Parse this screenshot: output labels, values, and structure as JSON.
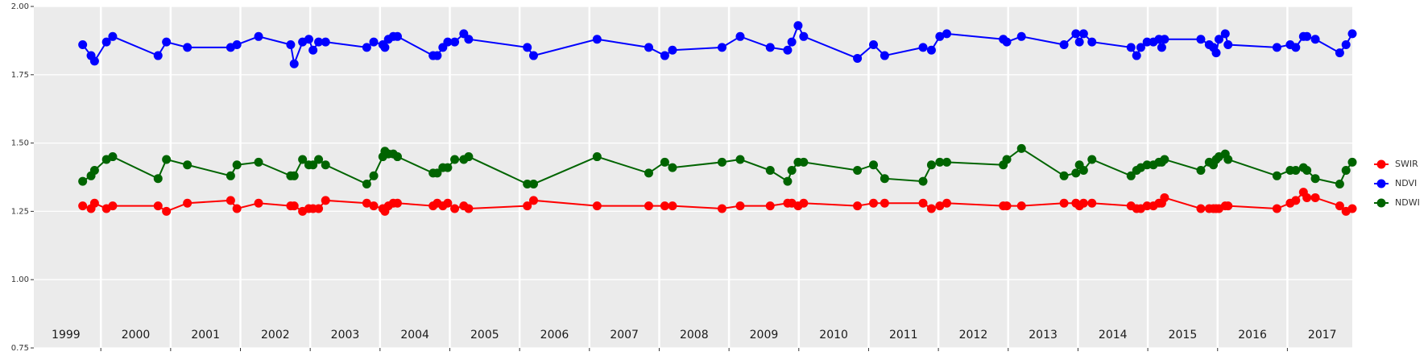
{
  "chart_data": {
    "type": "line",
    "x": [
      1999.74,
      1999.86,
      1999.91,
      2000.08,
      2000.17,
      2000.82,
      2000.94,
      2001.24,
      2001.86,
      2001.95,
      2002.26,
      2002.72,
      2002.77,
      2002.89,
      2002.98,
      2003.04,
      2003.12,
      2003.22,
      2003.81,
      2003.91,
      2004.04,
      2004.07,
      2004.12,
      2004.19,
      2004.25,
      2004.76,
      2004.82,
      2004.9,
      2004.97,
      2005.07,
      2005.2,
      2005.27,
      2006.11,
      2006.2,
      2007.11,
      2007.85,
      2008.08,
      2008.19,
      2008.9,
      2009.16,
      2009.59,
      2009.84,
      2009.9,
      2009.99,
      2010.07,
      2010.84,
      2011.07,
      2011.23,
      2011.78,
      2011.9,
      2012.02,
      2012.12,
      2012.93,
      2012.98,
      2013.19,
      2013.8,
      2013.97,
      2014.02,
      2014.08,
      2014.2,
      2014.76,
      2014.84,
      2014.9,
      2014.99,
      2015.08,
      2015.16,
      2015.2,
      2015.24,
      2015.76,
      2015.88,
      2015.94,
      2015.98,
      2016.02,
      2016.11,
      2016.15,
      2016.85,
      2017.04,
      2017.12,
      2017.23,
      2017.28,
      2017.4,
      2017.75,
      2017.84,
      2017.93
    ],
    "series": [
      {
        "name": "SWIR",
        "color": "#ff0000",
        "values": [
          1.27,
          1.26,
          1.28,
          1.26,
          1.27,
          1.27,
          1.25,
          1.28,
          1.29,
          1.26,
          1.28,
          1.27,
          1.27,
          1.25,
          1.26,
          1.26,
          1.26,
          1.29,
          1.28,
          1.27,
          1.26,
          1.25,
          1.27,
          1.28,
          1.28,
          1.27,
          1.28,
          1.27,
          1.28,
          1.26,
          1.27,
          1.26,
          1.27,
          1.29,
          1.27,
          1.27,
          1.27,
          1.27,
          1.26,
          1.27,
          1.27,
          1.28,
          1.28,
          1.27,
          1.28,
          1.27,
          1.28,
          1.28,
          1.28,
          1.26,
          1.27,
          1.28,
          1.27,
          1.27,
          1.27,
          1.28,
          1.28,
          1.27,
          1.28,
          1.28,
          1.27,
          1.26,
          1.26,
          1.27,
          1.27,
          1.28,
          1.28,
          1.3,
          1.26,
          1.26,
          1.26,
          1.26,
          1.26,
          1.27,
          1.27,
          1.26,
          1.28,
          1.29,
          1.32,
          1.3,
          1.3,
          1.27,
          1.25,
          1.26
        ]
      },
      {
        "name": "NDVI",
        "color": "#0000ff",
        "values": [
          1.86,
          1.82,
          1.8,
          1.87,
          1.89,
          1.82,
          1.87,
          1.85,
          1.85,
          1.86,
          1.89,
          1.86,
          1.79,
          1.87,
          1.88,
          1.84,
          1.87,
          1.87,
          1.85,
          1.87,
          1.86,
          1.85,
          1.88,
          1.89,
          1.89,
          1.82,
          1.82,
          1.85,
          1.87,
          1.87,
          1.9,
          1.88,
          1.85,
          1.82,
          1.88,
          1.85,
          1.82,
          1.84,
          1.85,
          1.89,
          1.85,
          1.84,
          1.87,
          1.93,
          1.89,
          1.81,
          1.86,
          1.82,
          1.85,
          1.84,
          1.89,
          1.9,
          1.88,
          1.87,
          1.89,
          1.86,
          1.9,
          1.87,
          1.9,
          1.87,
          1.85,
          1.82,
          1.85,
          1.87,
          1.87,
          1.88,
          1.85,
          1.88,
          1.88,
          1.86,
          1.85,
          1.83,
          1.88,
          1.9,
          1.86,
          1.85,
          1.86,
          1.85,
          1.89,
          1.89,
          1.88,
          1.83,
          1.86,
          1.9
        ]
      },
      {
        "name": "NDWI",
        "color": "#006400",
        "values": [
          1.36,
          1.38,
          1.4,
          1.44,
          1.45,
          1.37,
          1.44,
          1.42,
          1.38,
          1.42,
          1.43,
          1.38,
          1.38,
          1.44,
          1.42,
          1.42,
          1.44,
          1.42,
          1.35,
          1.38,
          1.45,
          1.47,
          1.46,
          1.46,
          1.45,
          1.39,
          1.39,
          1.41,
          1.41,
          1.44,
          1.44,
          1.45,
          1.35,
          1.35,
          1.45,
          1.39,
          1.43,
          1.41,
          1.43,
          1.44,
          1.4,
          1.36,
          1.4,
          1.43,
          1.43,
          1.4,
          1.42,
          1.37,
          1.36,
          1.42,
          1.43,
          1.43,
          1.42,
          1.44,
          1.48,
          1.38,
          1.39,
          1.42,
          1.4,
          1.44,
          1.38,
          1.4,
          1.41,
          1.42,
          1.42,
          1.43,
          1.43,
          1.44,
          1.4,
          1.43,
          1.42,
          1.44,
          1.45,
          1.46,
          1.44,
          1.38,
          1.4,
          1.4,
          1.41,
          1.4,
          1.37,
          1.35,
          1.4,
          1.43
        ]
      }
    ],
    "xlim": [
      1999.04,
      2017.93
    ],
    "xticks": [
      2000,
      2001,
      2002,
      2003,
      2004,
      2005,
      2006,
      2007,
      2008,
      2009,
      2010,
      2011,
      2012,
      2013,
      2014,
      2015,
      2016,
      2017
    ],
    "year_labels": [
      {
        "x": 1999.5,
        "label": "1999"
      },
      {
        "x": 2000.5,
        "label": "2000"
      },
      {
        "x": 2001.5,
        "label": "2001"
      },
      {
        "x": 2002.5,
        "label": "2002"
      },
      {
        "x": 2003.5,
        "label": "2003"
      },
      {
        "x": 2004.5,
        "label": "2004"
      },
      {
        "x": 2005.5,
        "label": "2005"
      },
      {
        "x": 2006.5,
        "label": "2006"
      },
      {
        "x": 2007.5,
        "label": "2007"
      },
      {
        "x": 2008.5,
        "label": "2008"
      },
      {
        "x": 2009.5,
        "label": "2009"
      },
      {
        "x": 2010.5,
        "label": "2010"
      },
      {
        "x": 2011.5,
        "label": "2011"
      },
      {
        "x": 2012.5,
        "label": "2012"
      },
      {
        "x": 2013.5,
        "label": "2013"
      },
      {
        "x": 2014.5,
        "label": "2014"
      },
      {
        "x": 2015.5,
        "label": "2015"
      },
      {
        "x": 2016.5,
        "label": "2016"
      },
      {
        "x": 2017.5,
        "label": "2017"
      }
    ],
    "ylim": [
      0.75,
      2.0
    ],
    "yticks": [
      {
        "value": 0.75,
        "label": "0.75"
      },
      {
        "value": 1.0,
        "label": "1.00"
      },
      {
        "value": 1.25,
        "label": "1.25"
      },
      {
        "value": 1.5,
        "label": "1.50"
      },
      {
        "value": 1.75,
        "label": "1.75"
      },
      {
        "value": 2.0,
        "label": "2.00"
      }
    ],
    "grid": true,
    "legend": "right"
  }
}
